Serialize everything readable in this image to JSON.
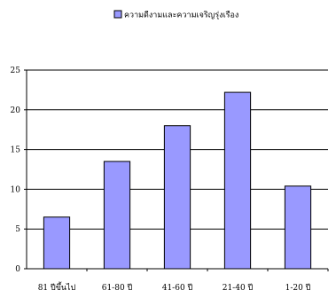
{
  "chart_data": {
    "type": "bar",
    "title": "",
    "xlabel": "",
    "ylabel": "",
    "categories": [
      "81 ปีขึ้นไป",
      "61-80 ปี",
      "41-60 ปี",
      "21-40 ปี",
      "1-20 ปี"
    ],
    "series": [
      {
        "name": "ความดีงามและความเจริญรุ่งเรือง",
        "values": [
          6.5,
          13.5,
          18.0,
          22.2,
          10.4
        ]
      }
    ],
    "ylim": [
      0,
      25
    ],
    "yticks": [
      0,
      5,
      10,
      15,
      20,
      25
    ],
    "grid": true,
    "legend_position": "top",
    "colors": {
      "bar_fill": "#9999ff",
      "bar_stroke": "#000000",
      "grid": "#000000"
    }
  }
}
